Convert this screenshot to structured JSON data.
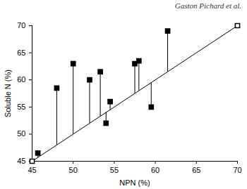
{
  "chart_data": {
    "type": "scatter",
    "annotation": "Gaston Pichard et al.",
    "x_label": "NPN (%)",
    "y_label": "Soluble N (%)",
    "x": [
      45.7,
      48,
      50,
      52,
      53.3,
      54,
      54.5,
      57.5,
      58,
      59.5,
      61.5
    ],
    "values": [
      46.5,
      58.5,
      63,
      60,
      61.5,
      52,
      56,
      63,
      63.5,
      55,
      69
    ],
    "color": "#000000",
    "marker": "square",
    "reference_line": {
      "x": [
        45,
        70
      ],
      "values": [
        45,
        70
      ],
      "marker": "square-open"
    },
    "xlim": [
      45,
      70
    ],
    "ylim": [
      45,
      70
    ],
    "xticks": [
      45,
      50,
      55,
      60,
      65,
      70
    ],
    "yticks": [
      45,
      50,
      55,
      60,
      65,
      70
    ],
    "grid": false
  }
}
